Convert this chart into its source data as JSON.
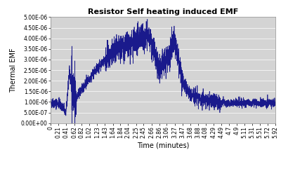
{
  "title": "Resistor Self heating induced EMF",
  "xlabel": "Time (minutes)",
  "ylabel": "Thermal EMF",
  "xlim": [
    0,
    5.92
  ],
  "ylim": [
    0,
    5e-06
  ],
  "yticks": [
    0,
    5e-07,
    1e-06,
    1.5e-06,
    2e-06,
    2.5e-06,
    3e-06,
    3.5e-06,
    4e-06,
    4.5e-06,
    5e-06
  ],
  "ytick_labels": [
    "0.00E+00",
    "5.00E-07",
    "1.00E-06",
    "1.50E-06",
    "2.00E-06",
    "2.50E-06",
    "3.00E-06",
    "3.50E-06",
    "4.00E-06",
    "4.50E-06",
    "5.00E-06"
  ],
  "xtick_positions": [
    0,
    0.21,
    0.41,
    0.62,
    0.82,
    1.02,
    1.23,
    1.43,
    1.64,
    1.84,
    2.04,
    2.25,
    2.45,
    2.66,
    2.86,
    3.06,
    3.27,
    3.47,
    3.68,
    3.88,
    4.08,
    4.29,
    4.49,
    4.7,
    4.9,
    5.11,
    5.31,
    5.51,
    5.72,
    5.92
  ],
  "xtick_labels": [
    "0",
    "0.21",
    "0.41",
    "0.62",
    "0.82",
    "1.02",
    "1.23",
    "1.43",
    "1.64",
    "1.84",
    "2.04",
    "2.25",
    "2.45",
    "2.66",
    "2.86",
    "3.06",
    "3.27",
    "3.47",
    "3.68",
    "3.88",
    "4.08",
    "4.29",
    "4.49",
    "4.7",
    "4.9",
    "5.11",
    "5.31",
    "5.51",
    "5.72",
    "5.92"
  ],
  "line_color": "#1a1a8c",
  "fig_bg_color": "#ffffff",
  "plot_bg_color": "#d4d4d4",
  "title_fontsize": 8,
  "axis_label_fontsize": 7,
  "tick_fontsize": 5.5,
  "line_width": 0.5
}
